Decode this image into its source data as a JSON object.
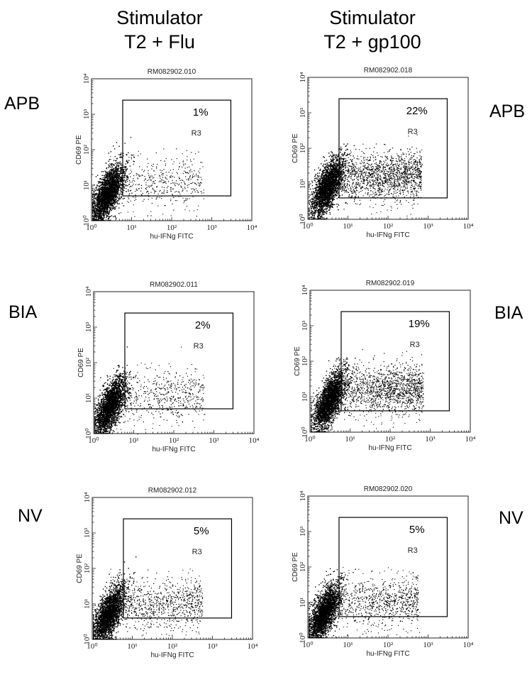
{
  "columns": [
    {
      "line1": "Stimulator",
      "line2": "T2 + Flu"
    },
    {
      "line1": "Stimulator",
      "line2": "T2 + gp100"
    }
  ],
  "row_labels": {
    "left": [
      "APB",
      "BIA",
      "NV"
    ],
    "right": [
      "APB",
      "BIA",
      "NV"
    ]
  },
  "chart_data": [
    {
      "type": "scatter",
      "title": "RM082902.010",
      "xlabel": "hu-IFNg FITC",
      "ylabel": "CD69 PE",
      "x_scale": "log",
      "y_scale": "log",
      "xlim": [
        1,
        10000
      ],
      "ylim": [
        1,
        10000
      ],
      "x_ticks": [
        "10⁰",
        "10¹",
        "10²",
        "10³",
        "10⁴"
      ],
      "y_ticks": [
        "10⁰",
        "10¹",
        "10²",
        "10³",
        "10⁴"
      ],
      "gate": {
        "name": "R3",
        "x_range": [
          6,
          3000
        ],
        "y_range": [
          5,
          2500
        ],
        "percent": "1%"
      },
      "events": {
        "main_cluster_center": [
          2.5,
          6
        ],
        "tail_density": 0.25
      }
    },
    {
      "type": "scatter",
      "title": "RM082902.018",
      "xlabel": "hu-IFNg FITC",
      "ylabel": "CD69 PE",
      "x_scale": "log",
      "y_scale": "log",
      "xlim": [
        1,
        10000
      ],
      "ylim": [
        1,
        10000
      ],
      "x_ticks": [
        "10⁰",
        "10¹",
        "10²",
        "10³",
        "10⁴"
      ],
      "y_ticks": [
        "10⁰",
        "10¹",
        "10²",
        "10³",
        "10⁴"
      ],
      "gate": {
        "name": "R3",
        "x_range": [
          6,
          3000
        ],
        "y_range": [
          4,
          2500
        ],
        "percent": "22%"
      },
      "events": {
        "main_cluster_center": [
          3,
          8
        ],
        "tail_density": 1.0
      }
    },
    {
      "type": "scatter",
      "title": "RM082902.011",
      "xlabel": "hu-IFNg FITC",
      "ylabel": "CD69 PE",
      "x_scale": "log",
      "y_scale": "log",
      "xlim": [
        1,
        10000
      ],
      "ylim": [
        1,
        10000
      ],
      "x_ticks": [
        "10⁰",
        "10¹",
        "10²",
        "10³",
        "10⁴"
      ],
      "y_ticks": [
        "10⁰",
        "10¹",
        "10²",
        "10³",
        "10⁴"
      ],
      "gate": {
        "name": "R3",
        "x_range": [
          6,
          3000
        ],
        "y_range": [
          5,
          2500
        ],
        "percent": "2%"
      },
      "events": {
        "main_cluster_center": [
          2.5,
          6
        ],
        "tail_density": 0.3
      }
    },
    {
      "type": "scatter",
      "title": "RM082902.019",
      "xlabel": "hu-IFNg FITC",
      "ylabel": "CD69 PE",
      "x_scale": "log",
      "y_scale": "log",
      "xlim": [
        1,
        10000
      ],
      "ylim": [
        1,
        10000
      ],
      "x_ticks": [
        "10⁰",
        "10¹",
        "10²",
        "10³",
        "10⁴"
      ],
      "y_ticks": [
        "10⁰",
        "10¹",
        "10²",
        "10³",
        "10⁴"
      ],
      "gate": {
        "name": "R3",
        "x_range": [
          6,
          3000
        ],
        "y_range": [
          4,
          2500
        ],
        "percent": "19%"
      },
      "events": {
        "main_cluster_center": [
          3,
          8
        ],
        "tail_density": 0.9
      }
    },
    {
      "type": "scatter",
      "title": "RM082902.012",
      "xlabel": "hu-IFNg FITC",
      "ylabel": "CD69 PE",
      "x_scale": "log",
      "y_scale": "log",
      "xlim": [
        1,
        10000
      ],
      "ylim": [
        1,
        10000
      ],
      "x_ticks": [
        "10⁰",
        "10¹",
        "10²",
        "10³",
        "10⁴"
      ],
      "y_ticks": [
        "10⁰",
        "10¹",
        "10²",
        "10³",
        "10⁴"
      ],
      "gate": {
        "name": "R3",
        "x_range": [
          6,
          3000
        ],
        "y_range": [
          4,
          2500
        ],
        "percent": "5%"
      },
      "events": {
        "main_cluster_center": [
          2.5,
          5
        ],
        "tail_density": 0.5
      }
    },
    {
      "type": "scatter",
      "title": "RM082902.020",
      "xlabel": "hu-IFNg FITC",
      "ylabel": "CD69 PE",
      "x_scale": "log",
      "y_scale": "log",
      "xlim": [
        1,
        10000
      ],
      "ylim": [
        1,
        10000
      ],
      "x_ticks": [
        "10⁰",
        "10¹",
        "10²",
        "10³",
        "10⁴"
      ],
      "y_ticks": [
        "10⁰",
        "10¹",
        "10²",
        "10³",
        "10⁴"
      ],
      "gate": {
        "name": "R3",
        "x_range": [
          6,
          3000
        ],
        "y_range": [
          4,
          2500
        ],
        "percent": "5%"
      },
      "events": {
        "main_cluster_center": [
          2.5,
          5
        ],
        "tail_density": 0.5
      }
    }
  ]
}
